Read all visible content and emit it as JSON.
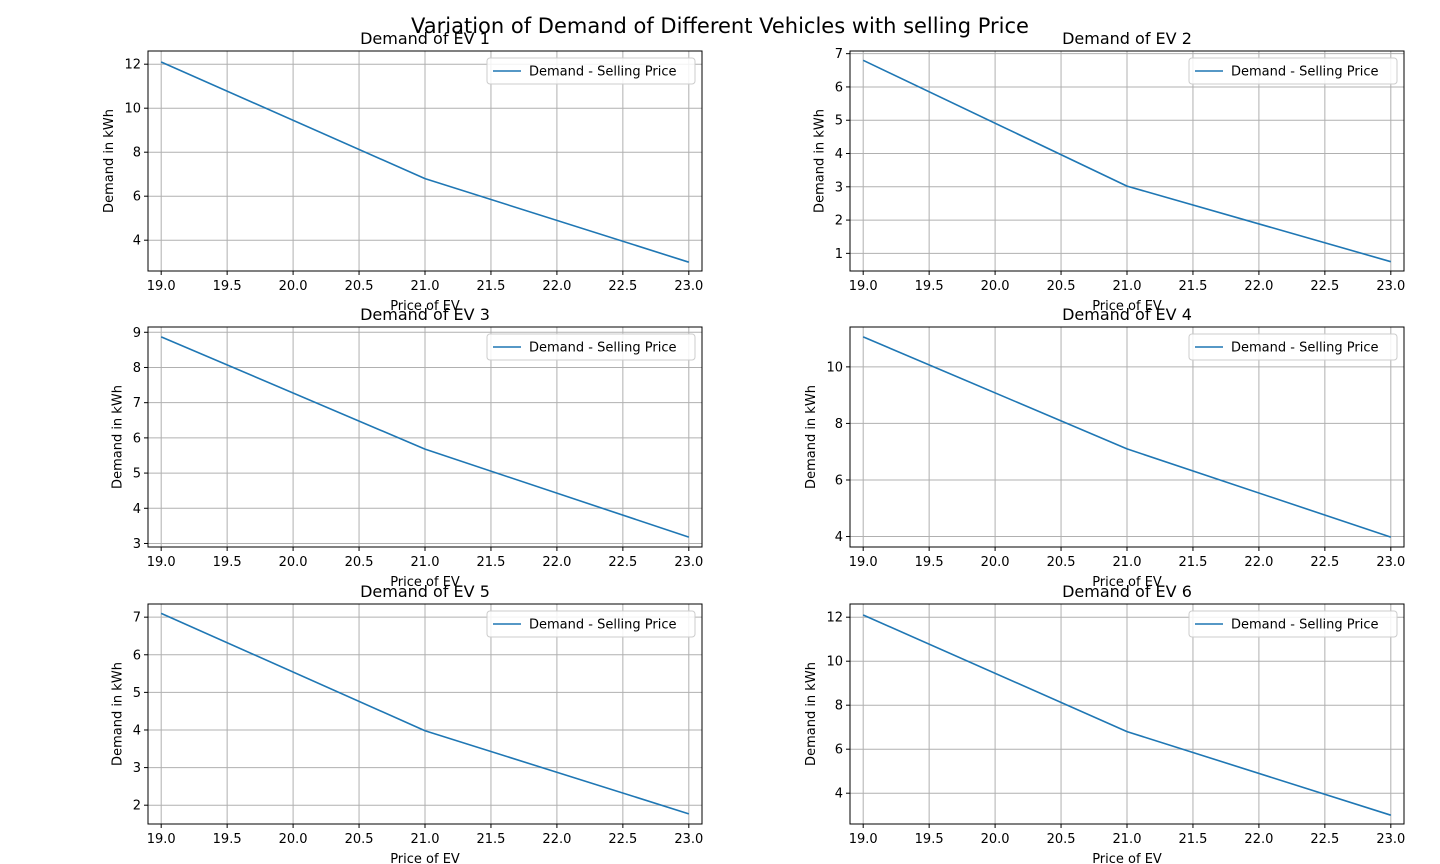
{
  "figure": {
    "title": "Variation of Demand of Different Vehicles with selling Price",
    "line_color": "#1f77b4"
  },
  "chart_data": [
    {
      "type": "line",
      "title": "Demand of EV 1",
      "xlabel": "Price of EV",
      "ylabel": "Demand in kWh",
      "x": [
        19.0,
        21.0,
        23.0
      ],
      "series": [
        {
          "name": "Demand - Selling Price",
          "values": [
            12.1,
            6.8,
            3.0
          ]
        }
      ],
      "xlim": [
        18.9,
        23.1
      ],
      "ylim": [
        2.6,
        12.6
      ],
      "xticks": [
        19.0,
        19.5,
        20.0,
        20.5,
        21.0,
        21.5,
        22.0,
        22.5,
        23.0
      ],
      "xtick_labels": [
        "19.0",
        "19.5",
        "20.0",
        "20.5",
        "21.0",
        "21.5",
        "22.0",
        "22.5",
        "23.0"
      ],
      "yticks": [
        4,
        6,
        8,
        10,
        12
      ],
      "ytick_labels": [
        "4",
        "6",
        "8",
        "10",
        "12"
      ],
      "grid": true,
      "legend": "upper right"
    },
    {
      "type": "line",
      "title": "Demand of EV 2",
      "xlabel": "Price of EV",
      "ylabel": "Demand in kWh",
      "x": [
        19.0,
        21.0,
        23.0
      ],
      "series": [
        {
          "name": "Demand - Selling Price",
          "values": [
            6.8,
            3.02,
            0.75
          ]
        }
      ],
      "xlim": [
        18.9,
        23.1
      ],
      "ylim": [
        0.47,
        7.08
      ],
      "xticks": [
        19.0,
        19.5,
        20.0,
        20.5,
        21.0,
        21.5,
        22.0,
        22.5,
        23.0
      ],
      "xtick_labels": [
        "19.0",
        "19.5",
        "20.0",
        "20.5",
        "21.0",
        "21.5",
        "22.0",
        "22.5",
        "23.0"
      ],
      "yticks": [
        1,
        2,
        3,
        4,
        5,
        6,
        7
      ],
      "ytick_labels": [
        "1",
        "2",
        "3",
        "4",
        "5",
        "6",
        "7"
      ],
      "grid": true,
      "legend": "upper right"
    },
    {
      "type": "line",
      "title": "Demand of EV 3",
      "xlabel": "Price of EV",
      "ylabel": "Demand in kWh",
      "x": [
        19.0,
        21.0,
        23.0
      ],
      "series": [
        {
          "name": "Demand - Selling Price",
          "values": [
            8.87,
            5.68,
            3.18
          ]
        }
      ],
      "xlim": [
        18.9,
        23.1
      ],
      "ylim": [
        2.9,
        9.15
      ],
      "xticks": [
        19.0,
        19.5,
        20.0,
        20.5,
        21.0,
        21.5,
        22.0,
        22.5,
        23.0
      ],
      "xtick_labels": [
        "19.0",
        "19.5",
        "20.0",
        "20.5",
        "21.0",
        "21.5",
        "22.0",
        "22.5",
        "23.0"
      ],
      "yticks": [
        3,
        4,
        5,
        6,
        7,
        8,
        9
      ],
      "ytick_labels": [
        "3",
        "4",
        "5",
        "6",
        "7",
        "8",
        "9"
      ],
      "grid": true,
      "legend": "upper right"
    },
    {
      "type": "line",
      "title": "Demand of EV 4",
      "xlabel": "Price of EV",
      "ylabel": "Demand in kWh",
      "x": [
        19.0,
        21.0,
        23.0
      ],
      "series": [
        {
          "name": "Demand - Selling Price",
          "values": [
            11.06,
            7.1,
            3.98
          ]
        }
      ],
      "xlim": [
        18.9,
        23.1
      ],
      "ylim": [
        3.63,
        11.41
      ],
      "xticks": [
        19.0,
        19.5,
        20.0,
        20.5,
        21.0,
        21.5,
        22.0,
        22.5,
        23.0
      ],
      "xtick_labels": [
        "19.0",
        "19.5",
        "20.0",
        "20.5",
        "21.0",
        "21.5",
        "22.0",
        "22.5",
        "23.0"
      ],
      "yticks": [
        4,
        6,
        8,
        10
      ],
      "ytick_labels": [
        "4",
        "6",
        "8",
        "10"
      ],
      "grid": true,
      "legend": "upper right"
    },
    {
      "type": "line",
      "title": "Demand of EV 5",
      "xlabel": "Price of EV",
      "ylabel": "Demand in kWh",
      "x": [
        19.0,
        21.0,
        23.0
      ],
      "series": [
        {
          "name": "Demand - Selling Price",
          "values": [
            7.1,
            3.98,
            1.77
          ]
        }
      ],
      "xlim": [
        18.9,
        23.1
      ],
      "ylim": [
        1.5,
        7.35
      ],
      "xticks": [
        19.0,
        19.5,
        20.0,
        20.5,
        21.0,
        21.5,
        22.0,
        22.5,
        23.0
      ],
      "xtick_labels": [
        "19.0",
        "19.5",
        "20.0",
        "20.5",
        "21.0",
        "21.5",
        "22.0",
        "22.5",
        "23.0"
      ],
      "yticks": [
        2,
        3,
        4,
        5,
        6,
        7
      ],
      "ytick_labels": [
        "2",
        "3",
        "4",
        "5",
        "6",
        "7"
      ],
      "grid": true,
      "legend": "upper right"
    },
    {
      "type": "line",
      "title": "Demand of EV 6",
      "xlabel": "Price of EV",
      "ylabel": "Demand in kWh",
      "x": [
        19.0,
        21.0,
        23.0
      ],
      "series": [
        {
          "name": "Demand - Selling Price",
          "values": [
            12.1,
            6.8,
            3.0
          ]
        }
      ],
      "xlim": [
        18.9,
        23.1
      ],
      "ylim": [
        2.6,
        12.6
      ],
      "xticks": [
        19.0,
        19.5,
        20.0,
        20.5,
        21.0,
        21.5,
        22.0,
        22.5,
        23.0
      ],
      "xtick_labels": [
        "19.0",
        "19.5",
        "20.0",
        "20.5",
        "21.0",
        "21.5",
        "22.0",
        "22.5",
        "23.0"
      ],
      "yticks": [
        4,
        6,
        8,
        10,
        12
      ],
      "ytick_labels": [
        "4",
        "6",
        "8",
        "10",
        "12"
      ],
      "grid": true,
      "legend": "upper right"
    }
  ]
}
